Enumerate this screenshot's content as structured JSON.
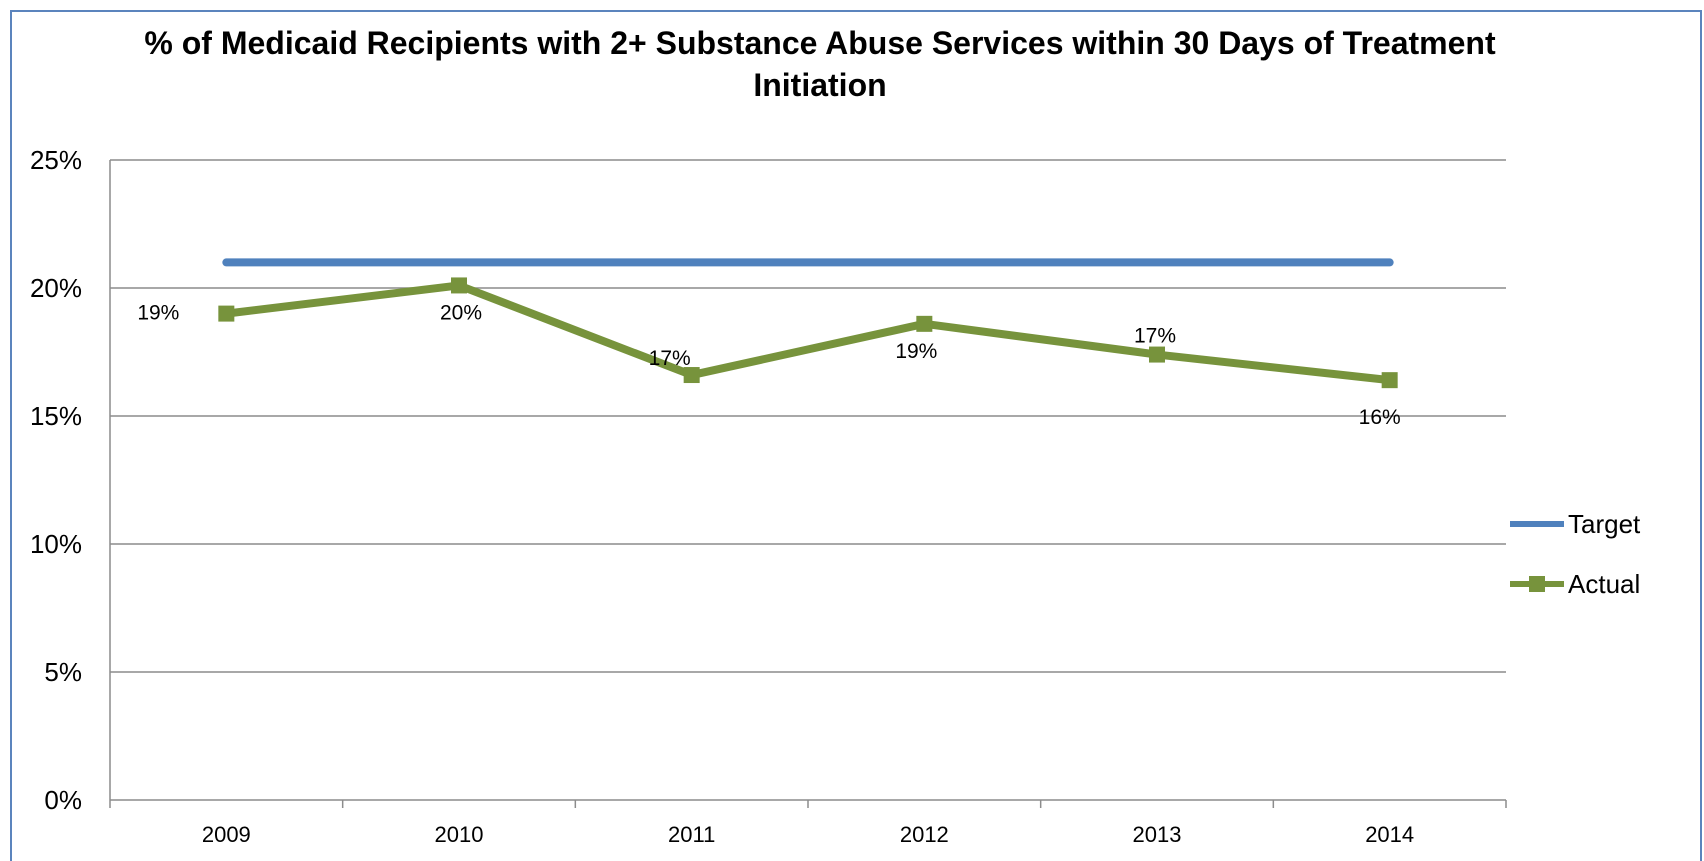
{
  "chart_data": {
    "type": "line",
    "title": "% of Medicaid Recipients with 2+ Substance Abuse Services within 30 Days of Treatment Initiation",
    "xlabel": "",
    "ylabel": "",
    "categories": [
      "2009",
      "2010",
      "2011",
      "2012",
      "2013",
      "2014"
    ],
    "ylim": [
      0,
      25
    ],
    "yticks": [
      "0%",
      "5%",
      "10%",
      "15%",
      "20%",
      "25%"
    ],
    "ytick_values": [
      0,
      5,
      10,
      15,
      20,
      25
    ],
    "grid": true,
    "legend_position": "right",
    "series": [
      {
        "name": "Target",
        "values": [
          21,
          21,
          21,
          21,
          21,
          21
        ],
        "color": "#4f81bd",
        "marker": "none",
        "data_labels": []
      },
      {
        "name": "Actual",
        "values": [
          19.0,
          20.1,
          16.6,
          18.6,
          17.4,
          16.4
        ],
        "color": "#77933c",
        "marker": "square",
        "data_labels": [
          "19%",
          "20%",
          "17%",
          "19%",
          "17%",
          "16%"
        ]
      }
    ]
  }
}
